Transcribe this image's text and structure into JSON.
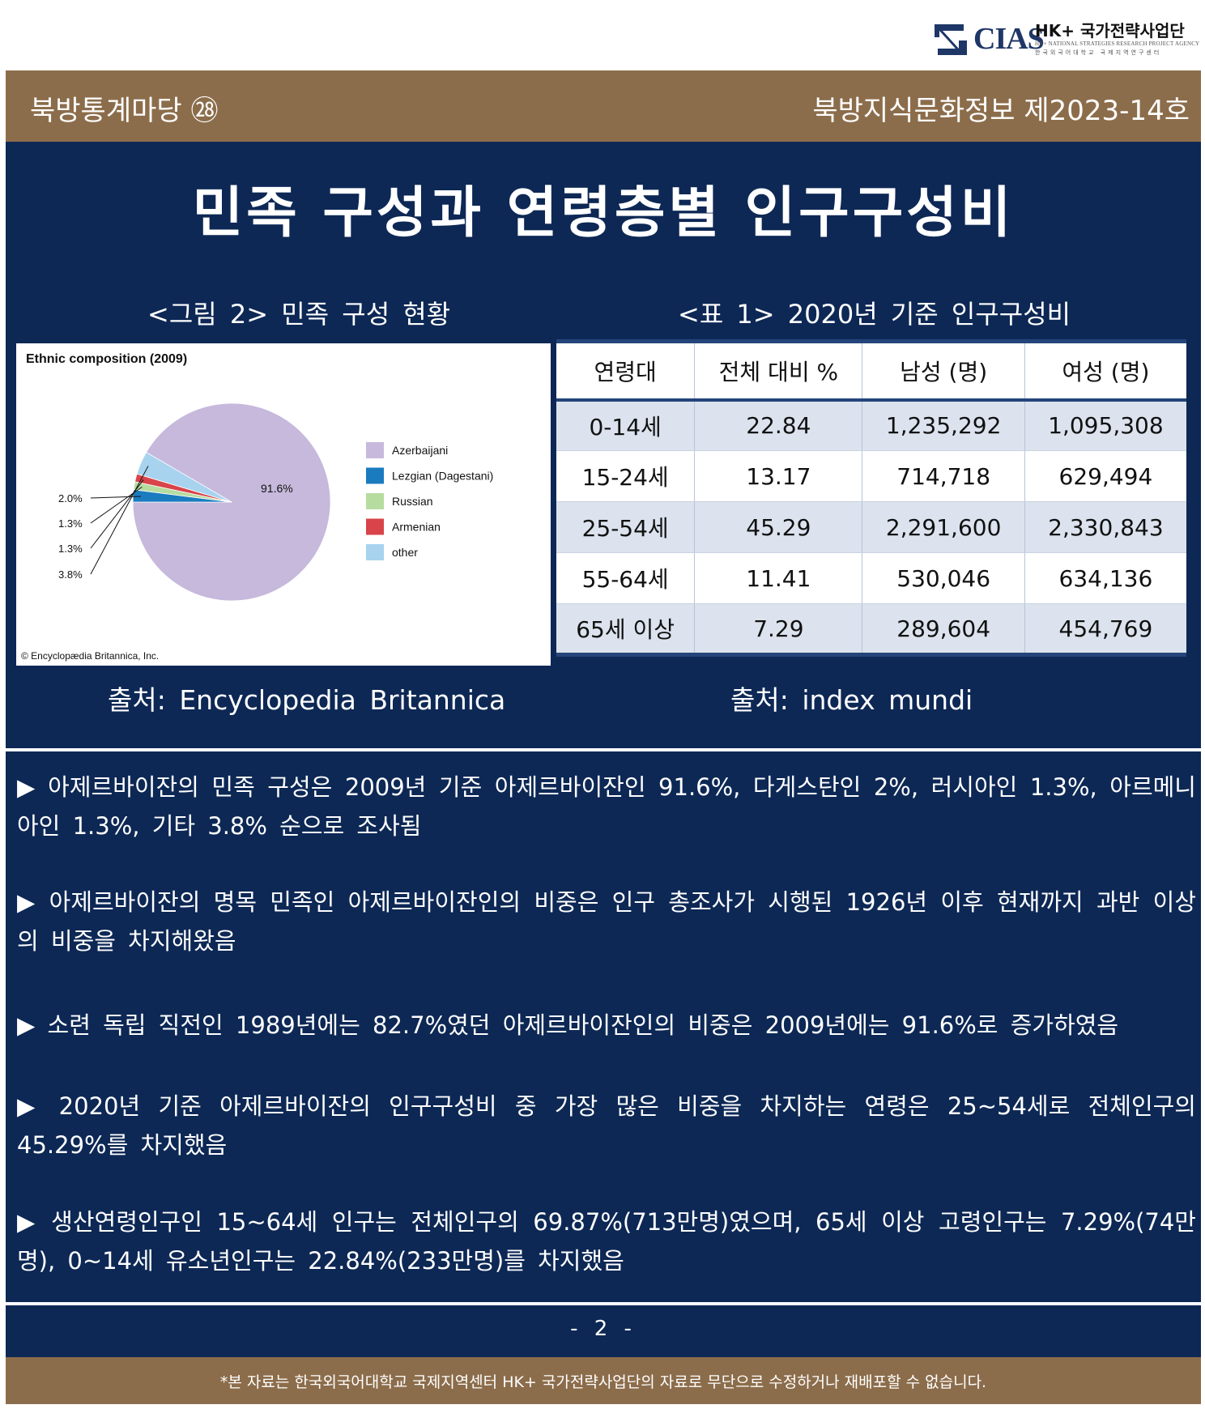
{
  "logo": {
    "brand": "CIAS",
    "program": "HK+ 국가전략사업단",
    "sub_en": "HK+ NATIONAL STRATEGIES RESEARCH PROJECT AGENCY",
    "sub_kr": "한국외국어대학교 국제지역연구센터"
  },
  "header": {
    "series": "북방통계마당 ㉘",
    "issue": "북방지식문화정보 제2023-14호"
  },
  "title": "민족 구성과 연령층별 인구구성비",
  "figure": {
    "caption": "<그림 2> 민족 구성 현황",
    "source": "출처: Encyclopedia Britannica",
    "copyright": "© Encyclopædia Britannica, Inc.",
    "colors": {
      "Azerbaijani": "#c6b9dc",
      "Lezgian (Dagestani)": "#1b7bbf",
      "Russian": "#b6dca0",
      "Armenian": "#d9434a",
      "other": "#a7d3ee"
    }
  },
  "chart_data": {
    "type": "pie",
    "title": "Ethnic composition (2009)",
    "categories": [
      "Azerbaijani",
      "Lezgian (Dagestani)",
      "Russian",
      "Armenian",
      "other"
    ],
    "values": [
      91.6,
      2.0,
      1.3,
      1.3,
      3.8
    ],
    "labels": [
      "91.6%",
      "2.0%",
      "1.3%",
      "1.3%",
      "3.8%"
    ],
    "legend": "right"
  },
  "table": {
    "caption": "<표 1> 2020년 기준 인구구성비",
    "source": "출처: index mundi",
    "headers": [
      "연령대",
      "전체 대비 %",
      "남성 (명)",
      "여성 (명)"
    ],
    "rows": [
      [
        "0-14세",
        "22.84",
        "1,235,292",
        "1,095,308"
      ],
      [
        "15-24세",
        "13.17",
        "714,718",
        "629,494"
      ],
      [
        "25-54세",
        "45.29",
        "2,291,600",
        "2,330,843"
      ],
      [
        "55-64세",
        "11.41",
        "530,046",
        "634,136"
      ],
      [
        "65세 이상",
        "7.29",
        "289,604",
        "454,769"
      ]
    ]
  },
  "paragraphs": [
    "▶ 아제르바이잔의 민족 구성은 2009년 기준 아제르바이잔인 91.6%, 다게스탄인 2%, 러시아인 1.3%, 아르메니아인 1.3%, 기타 3.8% 순으로 조사됨",
    "▶ 아제르바이잔의 명목 민족인 아제르바이잔인의 비중은 인구 총조사가 시행된 1926년 이후 현재까지 과반 이상의 비중을 차지해왔음",
    "▶ 소련 독립 직전인 1989년에는 82.7%였던 아제르바이잔인의 비중은 2009년에는 91.6%로 증가하였음",
    "▶ 2020년 기준 아제르바이잔의 인구구성비 중 가장 많은 비중을 차지하는 연령은 25~54세로 전체인구의 45.29%를 차지했음",
    "▶ 생산연령인구인 15~64세 인구는 전체인구의 69.87%(713만명)였으며, 65세 이상 고령인구는 7.29%(74만명), 0~14세 유소년인구는 22.84%(233만명)를 차지했음"
  ],
  "page_number": "- 2 -",
  "footer_note": "*본 자료는 한국외국어대학교 국제지역센터 HK+ 국가전략사업단의 자료로 무단으로 수정하거나 재배포할 수 없습니다."
}
